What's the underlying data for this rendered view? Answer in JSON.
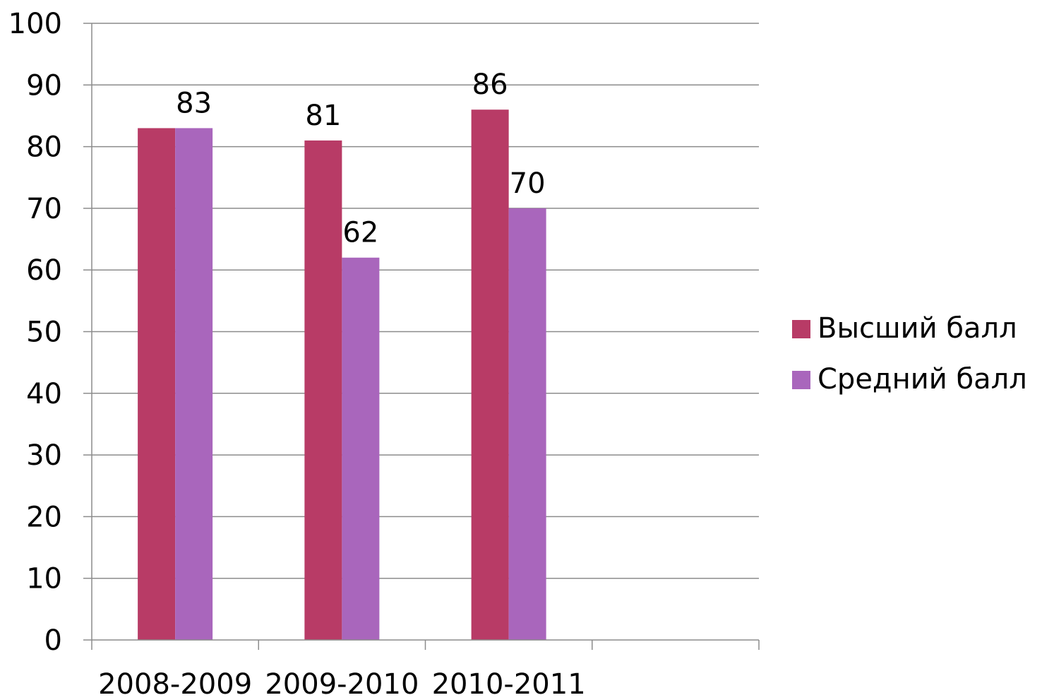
{
  "chart_data": {
    "type": "bar",
    "categories": [
      "2008-2009",
      "2009-2010",
      "2010-2011",
      ""
    ],
    "series": [
      {
        "name": "Высший балл",
        "values": [
          83,
          81,
          86,
          null
        ],
        "color": "#B83B66"
      },
      {
        "name": "Средний балл",
        "values": [
          83,
          62,
          70,
          null
        ],
        "color": "#A966BC"
      }
    ],
    "data_labels": [
      {
        "category": "2008-2009",
        "value": 83,
        "series": "Средний балл"
      },
      {
        "category": "2009-2010",
        "value": 81,
        "series": "Высший балл"
      },
      {
        "category": "2009-2010",
        "value": 62,
        "series": "Средний балл"
      },
      {
        "category": "2010-2011",
        "value": 86,
        "series": "Высший балл"
      },
      {
        "category": "2010-2011",
        "value": 70,
        "series": "Средний балл"
      }
    ],
    "ylim": [
      0,
      100
    ],
    "yticks": [
      0,
      10,
      20,
      30,
      40,
      50,
      60,
      70,
      80,
      90,
      100
    ],
    "title": "",
    "xlabel": "",
    "ylabel": "",
    "grid": true,
    "legend_position": "right"
  }
}
